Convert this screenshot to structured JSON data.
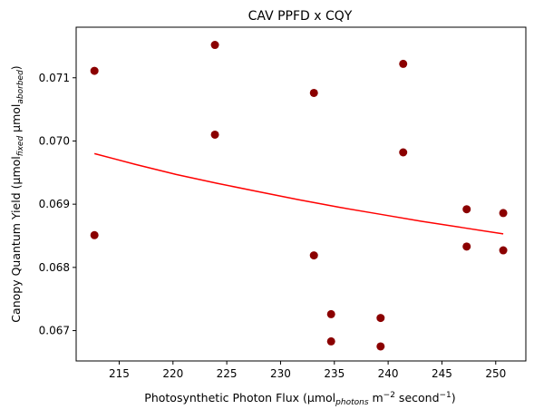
{
  "chart_data": {
    "type": "scatter",
    "title": "CAV PPFD x CQY",
    "xlabel": {
      "main": "Photosynthetic Photon Flux (µmol",
      "sub": "photons",
      "mid": " m",
      "sup1": "−2",
      "mid2": " second",
      "sup2": "−1",
      "end": ")"
    },
    "ylabel": {
      "main": "Canopy Quantum Yield (µmol",
      "sub1": "fixed",
      "mid": " µmol",
      "sub2": "aborbed",
      "end": ")"
    },
    "xlim": [
      211,
      252.8
    ],
    "ylim": [
      0.06652,
      0.0718
    ],
    "xticks": [
      215,
      220,
      225,
      230,
      235,
      240,
      245,
      250
    ],
    "yticks": [
      0.067,
      0.068,
      0.069,
      0.07,
      0.071
    ],
    "ytick_labels": [
      "0.067",
      "0.068",
      "0.069",
      "0.070",
      "0.071"
    ],
    "grid": false,
    "point_color": "#8b0000",
    "line_color": "#ff0000",
    "points": [
      {
        "x": 212.7,
        "y": 0.07111
      },
      {
        "x": 212.7,
        "y": 0.06851
      },
      {
        "x": 223.9,
        "y": 0.07152
      },
      {
        "x": 223.9,
        "y": 0.0701
      },
      {
        "x": 233.1,
        "y": 0.07076
      },
      {
        "x": 233.1,
        "y": 0.06819
      },
      {
        "x": 234.7,
        "y": 0.06726
      },
      {
        "x": 234.7,
        "y": 0.06683
      },
      {
        "x": 239.3,
        "y": 0.0672
      },
      {
        "x": 239.3,
        "y": 0.06675
      },
      {
        "x": 241.4,
        "y": 0.07122
      },
      {
        "x": 241.4,
        "y": 0.06982
      },
      {
        "x": 247.3,
        "y": 0.06892
      },
      {
        "x": 247.3,
        "y": 0.06833
      },
      {
        "x": 250.7,
        "y": 0.06886
      },
      {
        "x": 250.7,
        "y": 0.06827
      }
    ],
    "fit_line": {
      "x": [
        212.7,
        216.5,
        220.3,
        224.1,
        227.9,
        231.7,
        235.5,
        239.3,
        243.1,
        246.9,
        250.7
      ],
      "y": [
        0.0698,
        0.06963,
        0.06947,
        0.06933,
        0.0692,
        0.06907,
        0.06895,
        0.06884,
        0.06873,
        0.06863,
        0.06853
      ]
    }
  }
}
